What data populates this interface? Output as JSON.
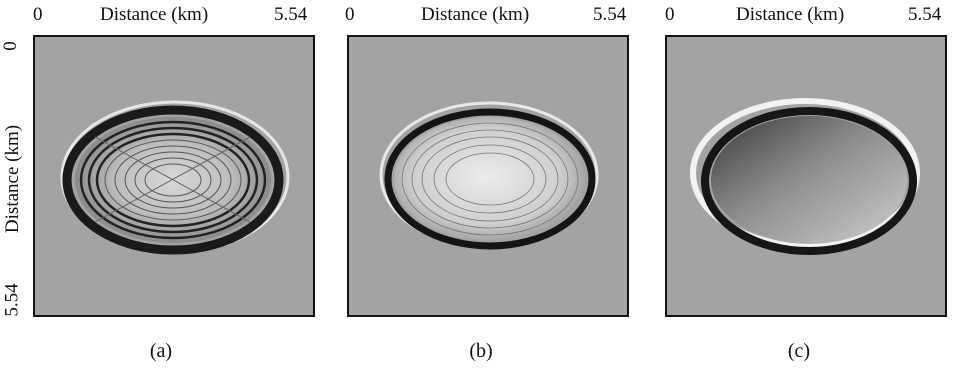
{
  "axes": {
    "x_label": "Distance (km)",
    "y_label": "Distance (km)",
    "min_label": "0",
    "max_label": "5.54"
  },
  "panels": [
    {
      "caption": "(a)"
    },
    {
      "caption": "(b)"
    },
    {
      "caption": "(c)"
    }
  ],
  "colors": {
    "background": "#a3a3a3",
    "frame": "#111111"
  }
}
